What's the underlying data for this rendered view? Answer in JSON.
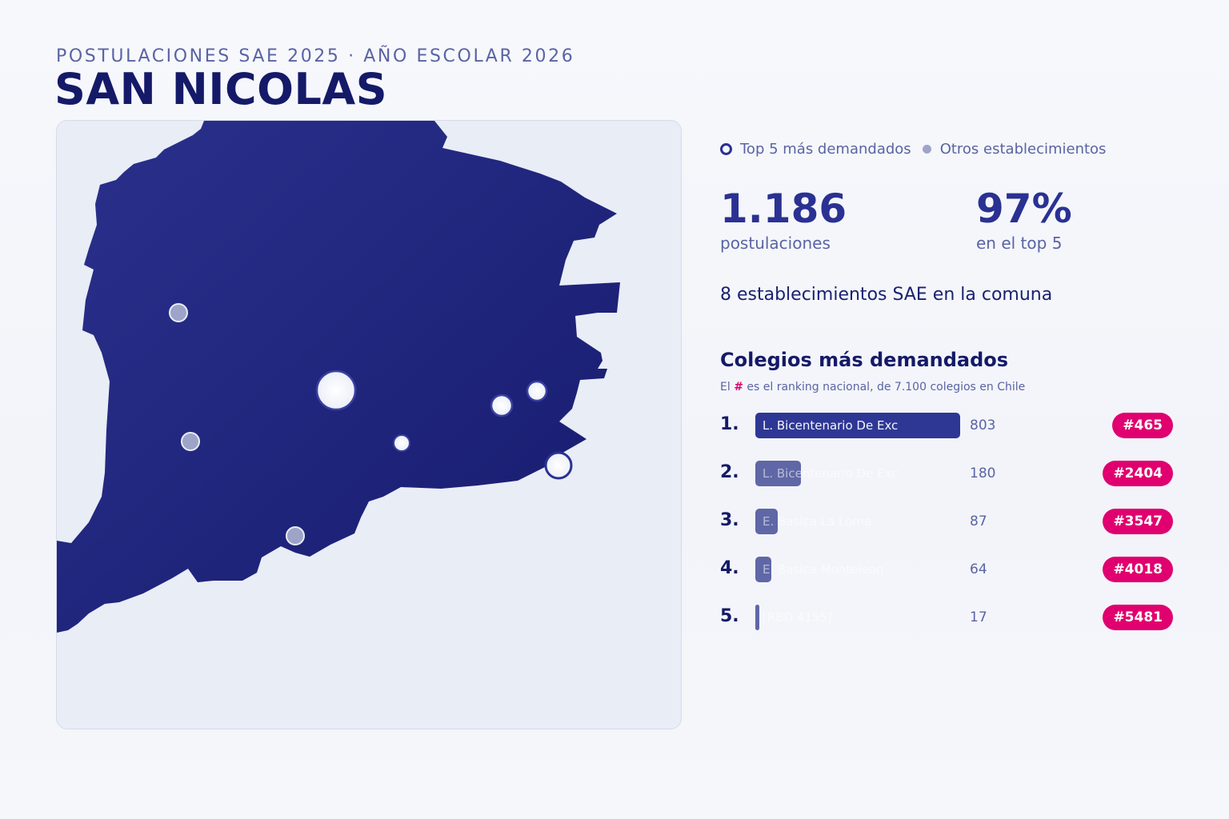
{
  "header": {
    "subtitle": "POSTULACIONES SAE 2025 · AÑO ESCOLAR 2026",
    "title": "SAN NICOLAS"
  },
  "legend": {
    "top5_label": "Top 5 más demandados",
    "others_label": "Otros establecimientos"
  },
  "stats": {
    "total_value": "1.186",
    "total_label": "postulaciones",
    "top5_share_value": "97%",
    "top5_share_label": "en el top 5",
    "schools_count_line": "8 establecimientos SAE en la comuna"
  },
  "ranking": {
    "title": "Colegios más demandados",
    "note_prefix": "El",
    "note_hash": "#",
    "note_suffix": "es el ranking nacional, de 7.100 colegios en Chile",
    "rows": [
      {
        "rank": "1.",
        "name": "L. Bicentenario De Exc",
        "value": 803,
        "value_label": "803",
        "badge": "#465"
      },
      {
        "rank": "2.",
        "name": "L. Bicentenario De Exc",
        "value": 180,
        "value_label": "180",
        "badge": "#2404"
      },
      {
        "rank": "3.",
        "name": "E. Basica La Loma",
        "value": 87,
        "value_label": "87",
        "badge": "#3547"
      },
      {
        "rank": "4.",
        "name": "E. Basica Monteleon",
        "value": 64,
        "value_label": "64",
        "badge": "#4018"
      },
      {
        "rank": "5.",
        "name": "[RBD 4155]",
        "value": 17,
        "value_label": "17",
        "badge": "#5481"
      }
    ]
  },
  "colors": {
    "commune_fill": "#1d2279",
    "accent": "#2a3192",
    "badge": "#e0006f",
    "other_marker": "#9ea4c8"
  }
}
